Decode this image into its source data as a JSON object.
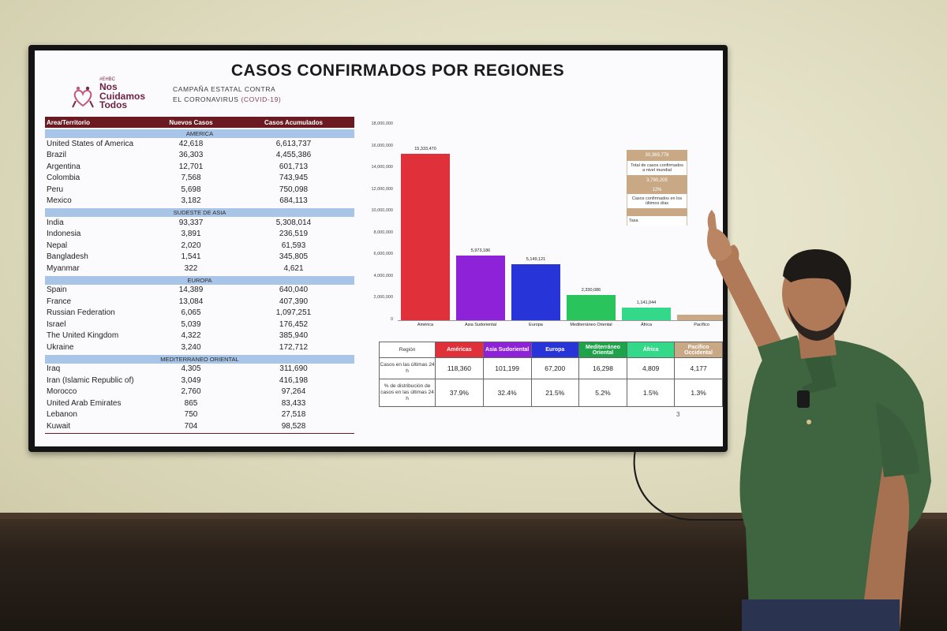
{
  "slide": {
    "title": "CASOS CONFIRMADOS POR REGIONES",
    "logo_small": "#EHBC",
    "logo_lines": [
      "Nos",
      "Cuidamos",
      "Todos"
    ],
    "campaign_line1": "CAMPAÑA ESTATAL CONTRA",
    "campaign_line2": "EL CORONAVIRUS",
    "campaign_covid": "(COVID-19)",
    "page_number": "3"
  },
  "left_table": {
    "headers": [
      "Area/Territorio",
      "Nuevos Casos",
      "Casos Acumulados"
    ],
    "groups": [
      {
        "region": "AMERICA",
        "rows": [
          [
            "United States of America",
            "42,618",
            "6,613,737"
          ],
          [
            "Brazil",
            "36,303",
            "4,455,386"
          ],
          [
            "Argentina",
            "12,701",
            "601,713"
          ],
          [
            "Colombia",
            "7,568",
            "743,945"
          ],
          [
            "Peru",
            "5,698",
            "750,098"
          ],
          [
            "Mexico",
            "3,182",
            "684,113"
          ]
        ]
      },
      {
        "region": "SUDESTE DE ASIA",
        "rows": [
          [
            "India",
            "93,337",
            "5,308,014"
          ],
          [
            "Indonesia",
            "3,891",
            "236,519"
          ],
          [
            "Nepal",
            "2,020",
            "61,593"
          ],
          [
            "Bangladesh",
            "1,541",
            "345,805"
          ],
          [
            "Myanmar",
            "322",
            "4,621"
          ]
        ]
      },
      {
        "region": "EUROPA",
        "rows": [
          [
            "Spain",
            "14,389",
            "640,040"
          ],
          [
            "France",
            "13,084",
            "407,390"
          ],
          [
            "Russian Federation",
            "6,065",
            "1,097,251"
          ],
          [
            "Israel",
            "5,039",
            "176,452"
          ],
          [
            "The United Kingdom",
            "4,322",
            "385,940"
          ],
          [
            "Ukraine",
            "3,240",
            "172,712"
          ]
        ]
      },
      {
        "region": "MEDITERRANEO ORIENTAL",
        "rows": [
          [
            "Iraq",
            "4,305",
            "311,690"
          ],
          [
            "Iran (Islamic Republic of)",
            "3,049",
            "416,198"
          ],
          [
            "Morocco",
            "2,760",
            "97,264"
          ],
          [
            "United Arab Emirates",
            "865",
            "83,433"
          ],
          [
            "Lebanon",
            "750",
            "27,518"
          ],
          [
            "Kuwait",
            "704",
            "98,528"
          ]
        ]
      }
    ]
  },
  "chart_data": {
    "type": "bar",
    "categories": [
      "América",
      "Asia Sudoriental",
      "Europa",
      "Mediterráneo Oriental",
      "África",
      "Pacífico"
    ],
    "values": [
      15333470,
      5973186,
      5149121,
      2330086,
      1141044,
      500000
    ],
    "value_labels": [
      "15,333,470",
      "5,973,186",
      "5,149,121",
      "2,330,086",
      "1,141,044",
      ""
    ],
    "colors": [
      "#e0313b",
      "#8e22d8",
      "#2734d8",
      "#29c45c",
      "#33d888",
      "#c9a985"
    ],
    "yticks": [
      "0",
      "2,000,000",
      "4,000,000",
      "6,000,000",
      "8,000,000",
      "10,000,000",
      "12,000,000",
      "14,000,000",
      "16,000,000",
      "18,000,000"
    ],
    "ylim": [
      0,
      18000000
    ]
  },
  "summary_box": {
    "total_value": "30,369,778",
    "total_label": "Total de casos confirmados a nivel mundial",
    "active_value": "3,790,205",
    "active_pct": "12%",
    "active_label": "Casos confirmados en los últimos días",
    "rate_label": "Tasa"
  },
  "bottom_table": {
    "corner": "Región",
    "columns": [
      {
        "name": "Américas",
        "color": "#e0313b"
      },
      {
        "name": "Asia Sudoriental",
        "color": "#8e22d8"
      },
      {
        "name": "Europa",
        "color": "#2734d8"
      },
      {
        "name": "Mediterráneo Oriental",
        "color": "#1ea34a"
      },
      {
        "name": "África",
        "color": "#33d888"
      },
      {
        "name": "Pacífico Occidental",
        "color": "#c9a985"
      }
    ],
    "rows": [
      {
        "label": "Casos en las últimas 24 h",
        "values": [
          "118,360",
          "101,199",
          "67,200",
          "16,298",
          "4,809",
          "4,177"
        ]
      },
      {
        "label": "% de distribución de casos en las últimas 24 h",
        "values": [
          "37.9%",
          "32.4%",
          "21.5%",
          "5.2%",
          "1.5%",
          "1.3%"
        ]
      }
    ]
  }
}
